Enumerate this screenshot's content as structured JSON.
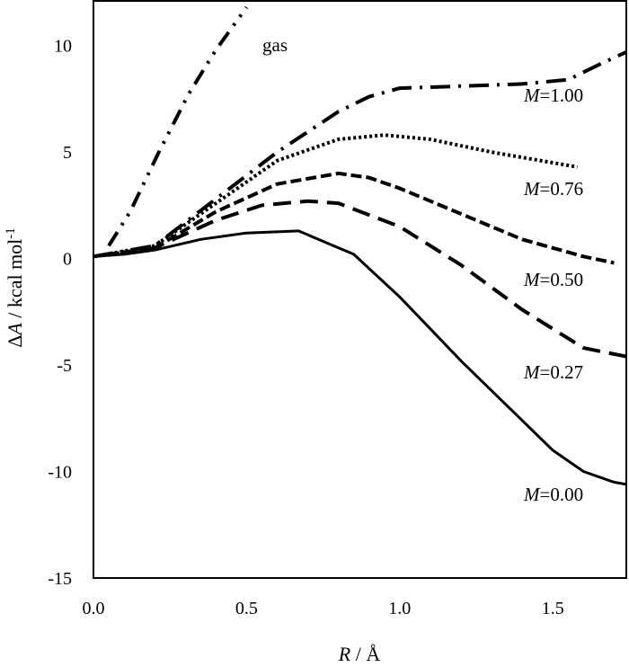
{
  "chart_data": {
    "type": "line",
    "xlabel": {
      "var": "R",
      "rest": " / Å"
    },
    "ylabel": {
      "prefix": "Δ",
      "var": "A",
      "rest": " / kcal mol",
      "sup": "-1"
    },
    "xlim": [
      0,
      1.74
    ],
    "ylim": [
      -15,
      12.1
    ],
    "xticks": [
      "0.0",
      "0.5",
      "1.0",
      "1.5"
    ],
    "xtick_values": [
      0,
      0.5,
      1.0,
      1.5
    ],
    "yticks": [
      "10",
      "5",
      "0",
      "-5",
      "-10",
      "-15"
    ],
    "ytick_values": [
      10,
      5,
      0,
      -5,
      -10,
      -15
    ],
    "grid": false,
    "line_color": "#000000",
    "series": [
      {
        "name": "gas",
        "label_var": "",
        "label_rest": "gas",
        "style": "dash-dot-dot",
        "x": [
          0.05,
          0.12,
          0.21,
          0.31,
          0.4,
          0.5
        ],
        "y": [
          0.6,
          2.2,
          4.9,
          7.7,
          9.8,
          11.8
        ]
      },
      {
        "name": "M=1.00",
        "label_var": "M",
        "label_rest": "=1.00",
        "style": "dash-dot",
        "x": [
          0,
          0.2,
          0.4,
          0.6,
          0.8,
          0.9,
          1.0,
          1.2,
          1.4,
          1.55,
          1.65,
          1.74
        ],
        "y": [
          0.1,
          0.6,
          2.8,
          5.0,
          6.9,
          7.6,
          8.0,
          8.1,
          8.2,
          8.4,
          9.1,
          9.7
        ]
      },
      {
        "name": "M=0.76",
        "label_var": "M",
        "label_rest": "=0.76",
        "style": "dotted",
        "x": [
          0,
          0.2,
          0.4,
          0.6,
          0.8,
          0.95,
          1.1,
          1.3,
          1.5,
          1.58
        ],
        "y": [
          0.1,
          0.6,
          2.6,
          4.6,
          5.6,
          5.8,
          5.6,
          5.0,
          4.5,
          4.3
        ]
      },
      {
        "name": "M=0.50",
        "label_var": "M",
        "label_rest": "=0.50",
        "style": "short-dash",
        "x": [
          0,
          0.2,
          0.4,
          0.6,
          0.8,
          0.9,
          1.0,
          1.2,
          1.4,
          1.6,
          1.7
        ],
        "y": [
          0.1,
          0.5,
          2.2,
          3.5,
          4.0,
          3.8,
          3.3,
          2.1,
          0.9,
          0.1,
          -0.2
        ]
      },
      {
        "name": "M=0.27",
        "label_var": "M",
        "label_rest": "=0.27",
        "style": "long-dash",
        "x": [
          0,
          0.2,
          0.4,
          0.55,
          0.7,
          0.8,
          1.0,
          1.2,
          1.4,
          1.6,
          1.74
        ],
        "y": [
          0.1,
          0.5,
          1.8,
          2.5,
          2.7,
          2.6,
          1.5,
          -0.3,
          -2.4,
          -4.2,
          -4.6
        ]
      },
      {
        "name": "M=0.00",
        "label_var": "M",
        "label_rest": "=0.00",
        "style": "solid",
        "x": [
          0,
          0.1,
          0.2,
          0.35,
          0.5,
          0.67,
          0.85,
          1.0,
          1.1,
          1.2,
          1.4,
          1.5,
          1.6,
          1.7,
          1.74
        ],
        "y": [
          0.1,
          0.2,
          0.4,
          0.9,
          1.2,
          1.3,
          0.2,
          -1.8,
          -3.3,
          -4.8,
          -7.6,
          -9.0,
          -10.0,
          -10.5,
          -10.6
        ]
      }
    ]
  }
}
